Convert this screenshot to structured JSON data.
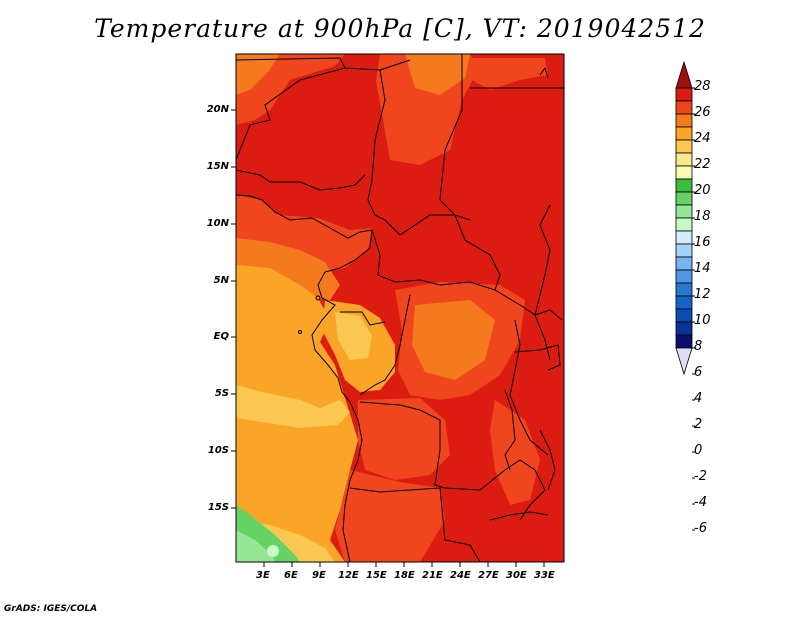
{
  "title": "Temperature at 900hPa [C], VT: 2019042512",
  "credit": "GrADS: IGES/COLA",
  "map": {
    "lat_ticks": [
      "20N",
      "15N",
      "10N",
      "5N",
      "EQ",
      "5S",
      "10S",
      "15S"
    ],
    "lon_ticks": [
      "3E",
      "6E",
      "9E",
      "12E",
      "15E",
      "18E",
      "21E",
      "24E",
      "27E",
      "30E",
      "33E"
    ]
  },
  "colorbar": {
    "labels": [
      "28",
      "26",
      "24",
      "22",
      "20",
      "18",
      "16",
      "14",
      "12",
      "10",
      "8",
      "6",
      "4",
      "2",
      "0",
      "-2",
      "-4",
      "-6"
    ],
    "colors": [
      "#a01010",
      "#dc1c10",
      "#f0461e",
      "#f57a1e",
      "#faa528",
      "#fac850",
      "#fae68c",
      "#fafab4",
      "#3cbe3c",
      "#64d264",
      "#96e696",
      "#c8fac8",
      "#d2eef8",
      "#a0d2fa",
      "#78b4f0",
      "#5096e6",
      "#2878d2",
      "#1464c8",
      "#0a4bb4",
      "#05329b",
      "#0a0f6e",
      "#dcdcf5"
    ]
  }
}
